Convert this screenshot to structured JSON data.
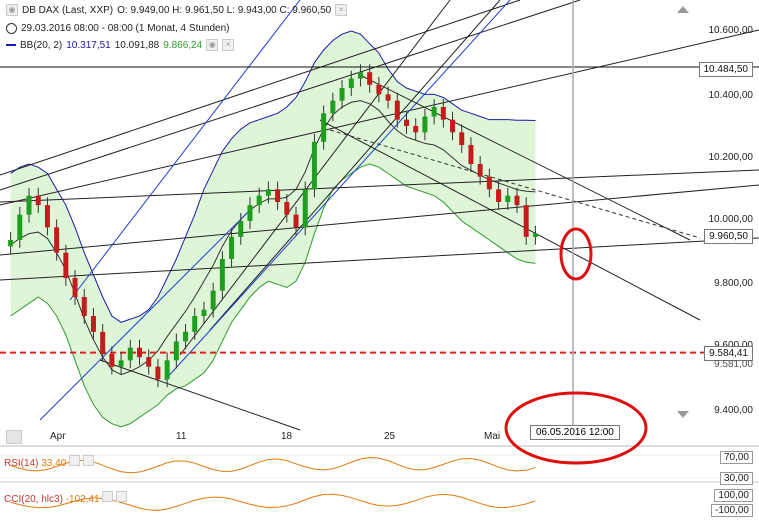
{
  "legend": {
    "instrument": "DB DAX (Last, XXP)",
    "ohlc": "O: 9.949,00  H: 9.961,50  L: 9.943,00  C: 9.960,50",
    "period": "29.03.2016 08:00 - 08:00 (1 Monat, 4 Stunden)",
    "bb_label": "BB(20, 2)",
    "bb_upper": "10.317,51",
    "bb_mid": "10.091,88",
    "bb_lower": "9.866,24"
  },
  "price_axis": {
    "ticks": [
      "10.600,00",
      "10.400,00",
      "10.200,00",
      "10.000,00",
      "9.800,00",
      "9.600,00",
      "9.400,00"
    ],
    "tag_high": "10.484,50",
    "tag_last": "9.960,50",
    "tag_red": "9.584,41",
    "tag_red_under": "9.581,00"
  },
  "x_axis": {
    "labels": [
      "Apr",
      "11",
      "18",
      "25",
      "Mai"
    ]
  },
  "cursor": {
    "date_label": "06.05.2016 12:00"
  },
  "indicators": {
    "rsi": {
      "label": "RSI(14)",
      "value": "33,40",
      "levels": [
        "70,00",
        "30,00"
      ]
    },
    "cci": {
      "label": "CCI(20, hlc3)",
      "value": "-102,41",
      "levels": [
        "100,00",
        "-100,00"
      ]
    }
  },
  "colors": {
    "bull": "#1e9e1e",
    "bear": "#c61b1b",
    "band_fill": "#dff5d8",
    "band_lower": "#2e9d2e",
    "band_upper": "#1a1aa8",
    "support_red": "#e02020",
    "annotation_red": "#dd1111",
    "osc": "#e07a10"
  },
  "chart_data": {
    "type": "candlestick",
    "title": "DB DAX (Last, XXP)",
    "timeframe": "4 Stunden",
    "ylim": [
      9300,
      10700
    ],
    "x_ticks": [
      "Apr",
      "11",
      "18",
      "25",
      "Mai"
    ],
    "series": [
      {
        "name": "DB DAX",
        "close": [
          9940,
          10020,
          10080,
          10050,
          9980,
          9900,
          9820,
          9760,
          9700,
          9650,
          9580,
          9540,
          9560,
          9600,
          9570,
          9540,
          9500,
          9560,
          9620,
          9650,
          9700,
          9720,
          9780,
          9880,
          9950,
          10000,
          10050,
          10080,
          10100,
          10060,
          10020,
          9980,
          10100,
          10250,
          10340,
          10380,
          10420,
          10450,
          10470,
          10430,
          10400,
          10380,
          10320,
          10300,
          10280,
          10330,
          10360,
          10320,
          10280,
          10240,
          10180,
          10140,
          10100,
          10060,
          10080,
          10050,
          9950,
          9960
        ],
        "bb_upper": [
          10150,
          10170,
          10180,
          10170,
          10150,
          10100,
          10050,
          9980,
          9900,
          9830,
          9760,
          9700,
          9680,
          9690,
          9700,
          9720,
          9760,
          9820,
          9880,
          9950,
          10020,
          10100,
          10160,
          10220,
          10260,
          10290,
          10310,
          10320,
          10330,
          10340,
          10360,
          10390,
          10440,
          10500,
          10540,
          10570,
          10590,
          10600,
          10590,
          10560,
          10530,
          10480,
          10440,
          10420,
          10410,
          10400,
          10400,
          10390,
          10370,
          10350,
          10340,
          10330,
          10320,
          10320,
          10320,
          10318,
          10318,
          10317.51
        ],
        "bb_lower": [
          9700,
          9720,
          9740,
          9760,
          9740,
          9700,
          9640,
          9560,
          9480,
          9420,
          9380,
          9360,
          9350,
          9360,
          9380,
          9400,
          9420,
          9450,
          9470,
          9480,
          9500,
          9520,
          9560,
          9620,
          9680,
          9720,
          9760,
          9790,
          9810,
          9800,
          9790,
          9810,
          9870,
          9960,
          10040,
          10100,
          10130,
          10150,
          10170,
          10180,
          10170,
          10150,
          10130,
          10110,
          10100,
          10090,
          10080,
          10060,
          10030,
          10000,
          9980,
          9960,
          9940,
          9920,
          9900,
          9880,
          9870,
          9866.24
        ],
        "bb_mid": 10091.88
      }
    ],
    "support_line": 9584.41,
    "high_line": 10484.5,
    "last": 9960.5
  }
}
